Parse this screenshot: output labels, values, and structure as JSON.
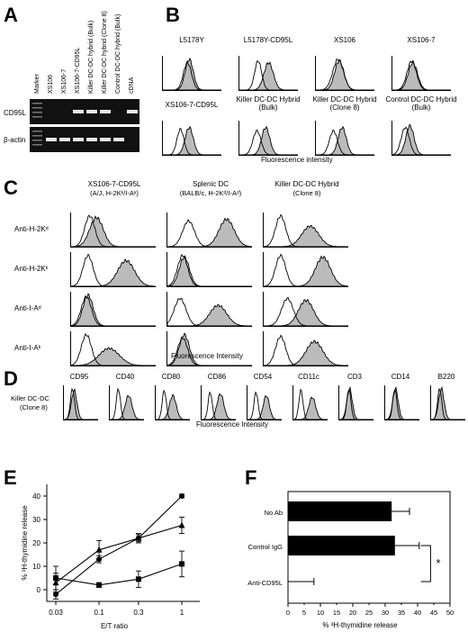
{
  "panels": {
    "A": {
      "label": "A",
      "lanes": [
        "Marker",
        "XS106",
        "XS106-7",
        "XS106-7-CD95L",
        "Killer DC-DC hybrid (Bulk)",
        "Killer DC-DC hybrid (Clone 8)",
        "Control DC-DC hybrid (Bulk)",
        "cDNA"
      ],
      "row_labels": [
        "CD95L",
        "β-actin"
      ],
      "cd95l_band": [
        0,
        0,
        0,
        1,
        1,
        1,
        0,
        1
      ],
      "actin_band": [
        1,
        1,
        1,
        1,
        1,
        1,
        1,
        0
      ]
    },
    "B": {
      "label": "B",
      "titles": [
        "L5178Y",
        "L5178Y-CD95L",
        "XS106",
        "XS106-7",
        "XS106-7-CD95L",
        "Killer DC-DC Hybrid (Bulk)",
        "Killer DC-DC Hybrid (Clone 8)",
        "Control DC-DC Hybrid (Bulk)"
      ],
      "xlabel": "Fluorescence intensity"
    },
    "C": {
      "label": "C",
      "col_titles": [
        [
          "XS106-7-CD95L",
          "(A/J, H-2Kᵏ/I-Aᵏ)"
        ],
        [
          "Splenic DC",
          "(BALB/c, H-2Kᵈ/I-Aᵈ)"
        ],
        [
          "Killer DC-DC Hybrid",
          "(Clone 8)"
        ]
      ],
      "row_labels": [
        "Anti-H-2Kᵈ",
        "Anti-H-2Kᵏ",
        "Anti-I-Aᵈ",
        "Anti-I-Aᵏ"
      ],
      "xlabel": "Fluorescence Intensity"
    },
    "D": {
      "label": "D",
      "markers": [
        "CD95",
        "CD40",
        "CD80",
        "CD86",
        "CD54",
        "CD11c",
        "CD3",
        "CD14",
        "B220"
      ],
      "row_label": [
        "Killer DC-DC",
        "(Clone 8)"
      ],
      "xlabel": "Fluorescence Intensity"
    },
    "E": {
      "label": "E",
      "ylabel": "% ³H-thymidine release",
      "xlabel": "E/T ratio"
    },
    "F": {
      "label": "F",
      "xlabel": "% ³H-thymidine release",
      "significance": "*"
    }
  },
  "chart_data": [
    {
      "type": "line",
      "panel": "E",
      "x": [
        0.03,
        0.1,
        0.3,
        1
      ],
      "xticklabels": [
        "0.03",
        "0.1",
        "0.3",
        "1"
      ],
      "xscale": "log",
      "ylim": [
        -5,
        45
      ],
      "yticks": [
        0,
        10,
        20,
        30,
        40
      ],
      "xlabel": "E/T ratio",
      "ylabel": "% ³H-thymidine release",
      "series": [
        {
          "marker": "circle",
          "values": [
            -2,
            13,
            22,
            40
          ],
          "err": [
            2,
            1.5,
            1.5,
            0.8
          ]
        },
        {
          "marker": "triangle",
          "values": [
            3,
            17,
            22,
            27.5
          ],
          "err": [
            4,
            4,
            2,
            3.5
          ]
        },
        {
          "marker": "square",
          "values": [
            5,
            2,
            4.5,
            11
          ],
          "err": [
            5,
            1,
            3.5,
            5.5
          ]
        }
      ]
    },
    {
      "type": "bar",
      "panel": "F",
      "orientation": "horizontal",
      "categories": [
        "No Ab",
        "Control IgG",
        "Anti-CD95L"
      ],
      "values": [
        32,
        33,
        0
      ],
      "err": [
        5.5,
        7.5,
        8
      ],
      "xlim": [
        0,
        50
      ],
      "xticks": [
        0,
        5,
        10,
        15,
        20,
        25,
        30,
        35,
        40,
        45,
        50
      ],
      "xlabel": "% ³H-thymidine release"
    }
  ]
}
